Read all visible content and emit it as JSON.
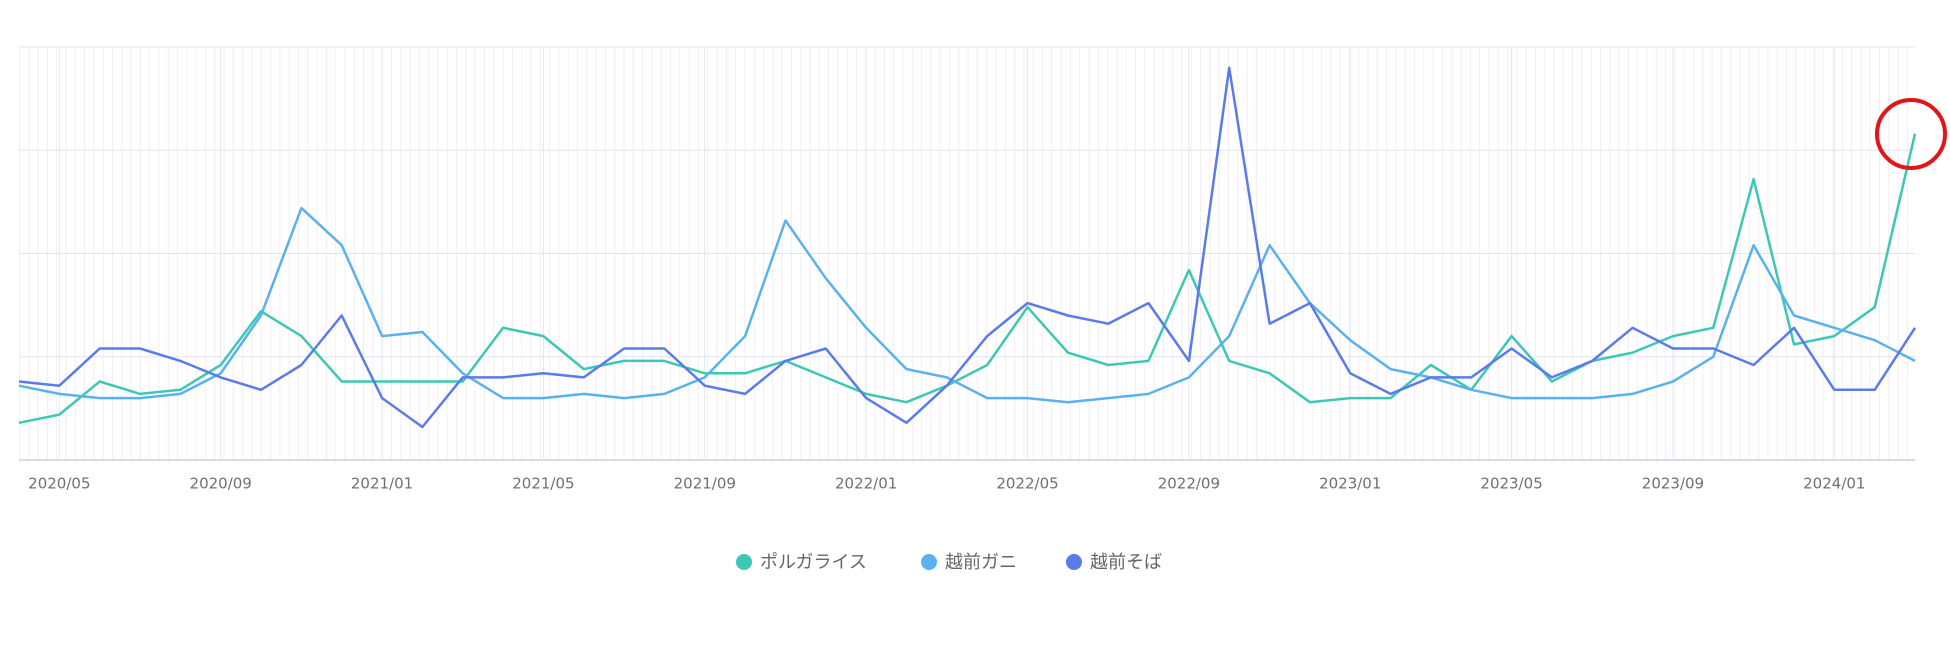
{
  "chart_data": {
    "type": "line",
    "categories": [
      null,
      "2020/05",
      null,
      null,
      null,
      "2020/09",
      null,
      null,
      null,
      "2021/01",
      null,
      null,
      null,
      "2021/05",
      null,
      null,
      null,
      "2021/09",
      null,
      null,
      null,
      "2022/01",
      null,
      null,
      null,
      "2022/05",
      null,
      null,
      null,
      "2022/09",
      null,
      null,
      null,
      "2023/01",
      null,
      null,
      null,
      "2023/05",
      null,
      null,
      null,
      "2023/09",
      null,
      null,
      null,
      "2024/01",
      null,
      null
    ],
    "series": [
      {
        "name": "ポルガライス",
        "color": "#3cc8b4",
        "values": [
          9,
          11,
          19,
          16,
          17,
          23,
          36,
          30,
          19,
          19,
          19,
          19,
          32,
          30,
          22,
          24,
          24,
          21,
          21,
          24,
          20,
          16,
          14,
          18,
          23,
          37,
          26,
          23,
          24,
          46,
          24,
          21,
          14,
          15,
          15,
          23,
          17,
          30,
          19,
          24,
          26,
          30,
          32,
          68,
          28,
          30,
          37,
          79
        ]
      },
      {
        "name": "越前ガニ",
        "color": "#5ab1ef",
        "values": [
          18,
          16,
          15,
          15,
          16,
          21,
          35,
          61,
          52,
          30,
          31,
          21,
          15,
          15,
          16,
          15,
          16,
          20,
          30,
          58,
          44,
          32,
          22,
          20,
          15,
          15,
          14,
          15,
          16,
          20,
          30,
          52,
          38,
          29,
          22,
          20,
          17,
          15,
          15,
          15,
          16,
          19,
          25,
          52,
          35,
          32,
          29,
          24
        ]
      },
      {
        "name": "越前そば",
        "color": "#5b7be9",
        "values": [
          19,
          18,
          27,
          27,
          24,
          20,
          17,
          23,
          35,
          15,
          8,
          20,
          20,
          21,
          20,
          27,
          27,
          18,
          16,
          24,
          27,
          15,
          9,
          18,
          30,
          38,
          35,
          33,
          38,
          24,
          95,
          33,
          38,
          21,
          16,
          20,
          20,
          27,
          20,
          24,
          32,
          27,
          27,
          23,
          32,
          17,
          17,
          32
        ]
      }
    ],
    "ylim": [
      0,
      100
    ],
    "yticks": [
      0,
      25,
      50,
      75,
      100
    ],
    "grid": true
  }
}
